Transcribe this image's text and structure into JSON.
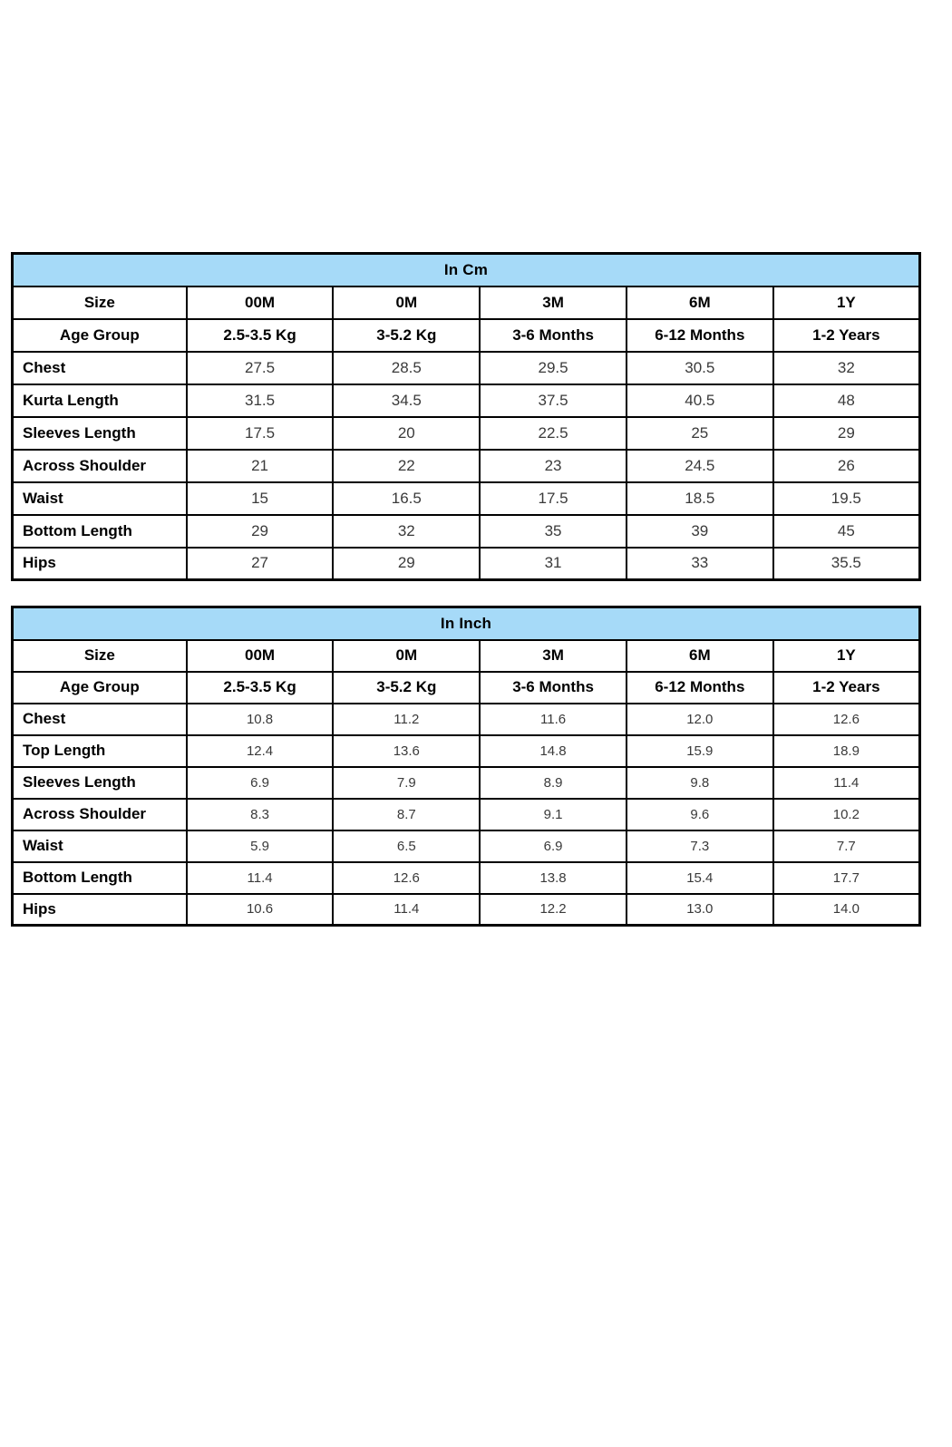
{
  "colors": {
    "page_bg": "#ffffff",
    "title_bg": "#A6DAF8",
    "border": "#000000",
    "label_text": "#000000",
    "value_text": "#3a3a3a"
  },
  "tables": [
    {
      "title": "In Cm",
      "header_rows": [
        {
          "label": "Size",
          "values": [
            "00M",
            "0M",
            "3M",
            "6M",
            "1Y"
          ]
        },
        {
          "label": "Age Group",
          "values": [
            "2.5-3.5 Kg",
            "3-5.2 Kg",
            "3-6 Months",
            "6-12 Months",
            "1-2 Years"
          ]
        }
      ],
      "rows": [
        {
          "label": "Chest",
          "values": [
            "27.5",
            "28.5",
            "29.5",
            "30.5",
            "32"
          ]
        },
        {
          "label": "Kurta Length",
          "values": [
            "31.5",
            "34.5",
            "37.5",
            "40.5",
            "48"
          ]
        },
        {
          "label": "Sleeves Length",
          "values": [
            "17.5",
            "20",
            "22.5",
            "25",
            "29"
          ]
        },
        {
          "label": "Across Shoulder",
          "values": [
            "21",
            "22",
            "23",
            "24.5",
            "26"
          ]
        },
        {
          "label": "Waist",
          "values": [
            "15",
            "16.5",
            "17.5",
            "18.5",
            "19.5"
          ]
        },
        {
          "label": "Bottom Length",
          "values": [
            "29",
            "32",
            "35",
            "39",
            "45"
          ]
        },
        {
          "label": "Hips",
          "values": [
            "27",
            "29",
            "31",
            "33",
            "35.5"
          ]
        }
      ]
    },
    {
      "title": "In Inch",
      "header_rows": [
        {
          "label": "Size",
          "values": [
            "00M",
            "0M",
            "3M",
            "6M",
            "1Y"
          ]
        },
        {
          "label": "Age Group",
          "values": [
            "2.5-3.5 Kg",
            "3-5.2 Kg",
            "3-6 Months",
            "6-12 Months",
            "1-2 Years"
          ]
        }
      ],
      "rows": [
        {
          "label": "Chest",
          "values": [
            "10.8",
            "11.2",
            "11.6",
            "12.0",
            "12.6"
          ]
        },
        {
          "label": "Top Length",
          "values": [
            "12.4",
            "13.6",
            "14.8",
            "15.9",
            "18.9"
          ]
        },
        {
          "label": "Sleeves Length",
          "values": [
            "6.9",
            "7.9",
            "8.9",
            "9.8",
            "11.4"
          ]
        },
        {
          "label": "Across Shoulder",
          "values": [
            "8.3",
            "8.7",
            "9.1",
            "9.6",
            "10.2"
          ]
        },
        {
          "label": "Waist",
          "values": [
            "5.9",
            "6.5",
            "6.9",
            "7.3",
            "7.7"
          ]
        },
        {
          "label": "Bottom Length",
          "values": [
            "11.4",
            "12.6",
            "13.8",
            "15.4",
            "17.7"
          ]
        },
        {
          "label": "Hips",
          "values": [
            "10.6",
            "11.4",
            "12.2",
            "13.0",
            "14.0"
          ]
        }
      ]
    }
  ]
}
